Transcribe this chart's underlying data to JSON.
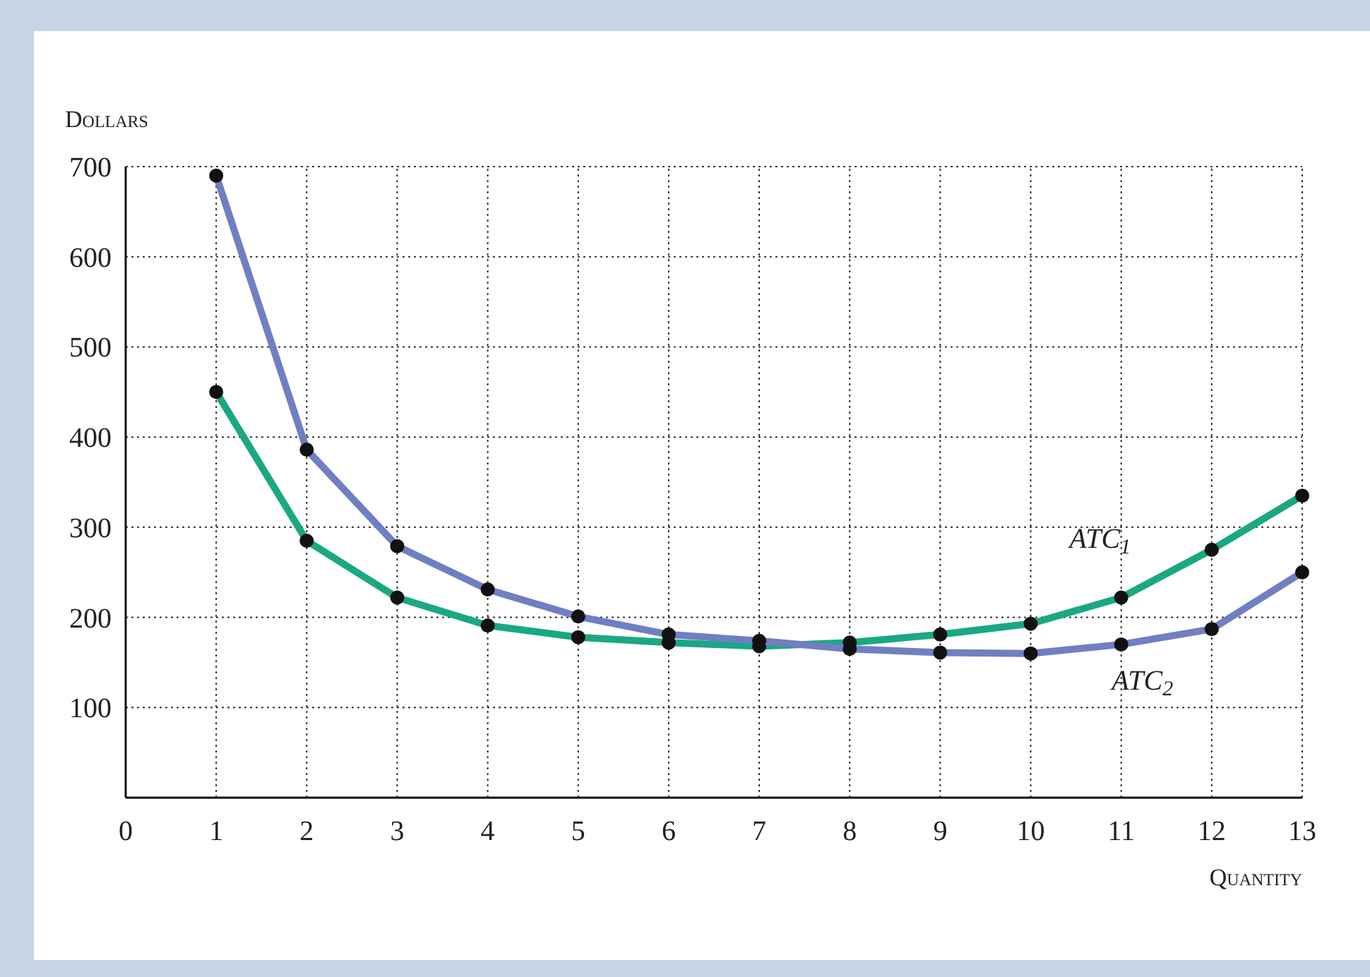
{
  "chart_data": {
    "type": "line",
    "ylabel": "Dollars",
    "xlabel": "Quantity",
    "x": [
      1,
      2,
      3,
      4,
      5,
      6,
      7,
      8,
      9,
      10,
      11,
      12,
      13
    ],
    "series": [
      {
        "name": "ATC$_{1}$",
        "color": "#1aa882",
        "values": [
          450,
          285,
          222,
          191,
          178,
          172,
          168,
          172,
          181,
          193,
          222,
          275,
          335
        ]
      },
      {
        "name": "ATC$_{2}$",
        "color": "#6f7fc1",
        "values": [
          690,
          386,
          279,
          231,
          201,
          181,
          174,
          165,
          161,
          160,
          170,
          187,
          250
        ]
      }
    ],
    "xlim": [
      0,
      13
    ],
    "ylim": [
      0,
      700
    ],
    "xticks": [
      0,
      1,
      2,
      3,
      4,
      5,
      6,
      7,
      8,
      9,
      10,
      11,
      12,
      13
    ],
    "yticks": [
      100,
      200,
      300,
      400,
      500,
      600,
      700
    ],
    "grid": true,
    "marker": "circle",
    "line_style": "solid"
  }
}
